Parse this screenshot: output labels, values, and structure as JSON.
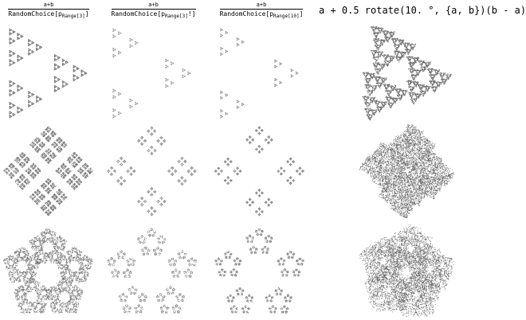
{
  "columns": [
    {
      "numerator": "a+b",
      "function": "RandomChoice[",
      "symbol": "p",
      "subscript": "Range[3]",
      "suffix": "]"
    },
    {
      "numerator": "a+b",
      "function": "RandomChoice[",
      "symbol": "p",
      "subscript": "Range[3]",
      "suffix": "!]"
    },
    {
      "numerator": "a+b",
      "function": "RandomChoice[",
      "symbol": "p",
      "subscript": "Range[10]",
      "suffix": "]"
    }
  ],
  "formula": "a + 0.5 rotate(10. °, {a, b})(b - a)"
}
